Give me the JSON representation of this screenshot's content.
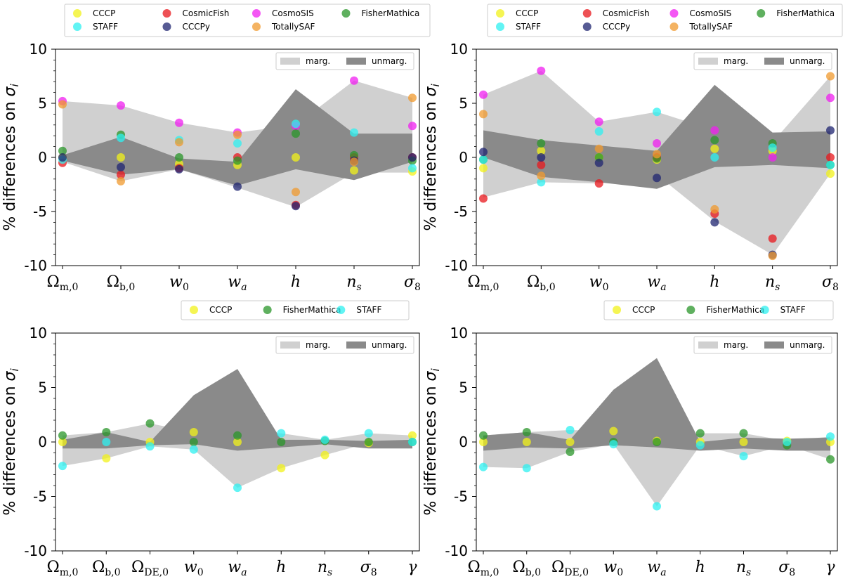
{
  "colors": {
    "CCCP": "#f2f21a",
    "CosmicFish": "#e8171c",
    "CosmoSIS": "#f01ff0",
    "FisherMathica": "#2a962a",
    "STAFF": "#2ef0f0",
    "CCCPy": "#1f2470",
    "TotallySAF": "#f09a2e",
    "marg": "#d0d0d0",
    "unmarg": "#8a8a8a"
  },
  "chart_data": [
    {
      "type": "scatter",
      "ylabel_prefix": "% differences on ",
      "ylabel_symbol": "σ",
      "ylabel_sub": "i",
      "ylim": [
        -10,
        10
      ],
      "yticks": [
        "10",
        "5",
        "0",
        "-5",
        "-10"
      ],
      "ytick_values": [
        10,
        5,
        0,
        -5,
        -10
      ],
      "legend_entries": [
        "CCCP",
        "CosmicFish",
        "CosmoSIS",
        "FisherMathica",
        "STAFF",
        "CCCPy",
        "TotallySAF"
      ],
      "band_legend": {
        "marg": "marg.",
        "unmarg": "unmarg."
      },
      "categories": [
        {
          "main": "Ω",
          "sub": "m,0",
          "italic": false
        },
        {
          "main": "Ω",
          "sub": "b,0",
          "italic": false
        },
        {
          "main": "w",
          "sub": "0",
          "italic": true
        },
        {
          "main": "w",
          "sub": "a",
          "italic": true
        },
        {
          "main": "h",
          "sub": "",
          "italic": true
        },
        {
          "main": "n",
          "sub": "s",
          "italic": true
        },
        {
          "main": "σ",
          "sub": "8",
          "italic": true
        }
      ],
      "marg_band": {
        "upper": [
          5.2,
          4.8,
          3.2,
          2.3,
          3.0,
          7.1,
          5.5
        ],
        "lower": [
          -0.4,
          -2.2,
          -1.1,
          -2.8,
          -4.6,
          -1.4,
          -1.4
        ]
      },
      "unmarg_band": {
        "upper": [
          0.2,
          1.9,
          -0.1,
          -0.4,
          6.3,
          2.2,
          2.2
        ],
        "lower": [
          -0.3,
          -1.6,
          -1.1,
          -2.6,
          -1.1,
          -2.1,
          -0.4
        ]
      },
      "series": [
        {
          "name": "CCCP",
          "values": [
            0.0,
            0.0,
            -0.6,
            -0.7,
            0.0,
            -1.2,
            -1.3
          ]
        },
        {
          "name": "CosmicFish",
          "values": [
            -0.5,
            -1.6,
            -1.0,
            0.0,
            -4.4,
            0.0,
            0.0
          ]
        },
        {
          "name": "CosmoSIS",
          "values": [
            5.2,
            4.8,
            3.2,
            2.3,
            2.9,
            7.1,
            2.9
          ]
        },
        {
          "name": "FisherMathica",
          "values": [
            0.6,
            2.1,
            0.0,
            -0.3,
            2.2,
            0.2,
            -0.3
          ]
        },
        {
          "name": "STAFF",
          "values": [
            -0.2,
            1.8,
            1.6,
            1.3,
            3.1,
            2.3,
            -1.0
          ]
        },
        {
          "name": "CCCPy",
          "values": [
            0.0,
            -0.9,
            -1.1,
            -2.7,
            -4.5,
            -0.3,
            0.0
          ]
        },
        {
          "name": "TotallySAF",
          "values": [
            4.9,
            -2.2,
            1.4,
            2.1,
            -3.2,
            -0.4,
            5.5
          ]
        }
      ]
    },
    {
      "type": "scatter",
      "ylabel_prefix": "% differences on ",
      "ylabel_symbol": "σ",
      "ylabel_sub": "i",
      "ylim": [
        -10,
        10
      ],
      "yticks": [
        "10",
        "5",
        "0",
        "-5",
        "-10"
      ],
      "ytick_values": [
        10,
        5,
        0,
        -5,
        -10
      ],
      "legend_entries": [
        "CCCP",
        "CosmicFish",
        "CosmoSIS",
        "FisherMathica",
        "STAFF",
        "CCCPy",
        "TotallySAF"
      ],
      "band_legend": {
        "marg": "marg.",
        "unmarg": "unmarg."
      },
      "categories": [
        {
          "main": "Ω",
          "sub": "m,0",
          "italic": false
        },
        {
          "main": "Ω",
          "sub": "b,0",
          "italic": false
        },
        {
          "main": "w",
          "sub": "0",
          "italic": true
        },
        {
          "main": "w",
          "sub": "a",
          "italic": true
        },
        {
          "main": "h",
          "sub": "",
          "italic": true
        },
        {
          "main": "n",
          "sub": "s",
          "italic": true
        },
        {
          "main": "σ",
          "sub": "8",
          "italic": true
        }
      ],
      "marg_band": {
        "upper": [
          5.8,
          8.0,
          3.3,
          4.2,
          2.5,
          1.4,
          7.5
        ],
        "lower": [
          -3.7,
          -2.3,
          -2.4,
          -1.6,
          -5.9,
          -9.0,
          -1.5
        ]
      },
      "unmarg_band": {
        "upper": [
          2.5,
          1.6,
          1.1,
          0.6,
          6.7,
          2.3,
          2.4
        ],
        "lower": [
          0.0,
          -1.8,
          -2.3,
          -2.9,
          -0.9,
          -0.7,
          -1.0
        ]
      },
      "series": [
        {
          "name": "CCCP",
          "values": [
            -1.0,
            0.6,
            0.0,
            -0.2,
            0.8,
            0.6,
            -1.5
          ]
        },
        {
          "name": "CosmicFish",
          "values": [
            -3.8,
            -0.7,
            -2.4,
            0.0,
            -5.2,
            -7.5,
            0.0
          ]
        },
        {
          "name": "CosmoSIS",
          "values": [
            5.8,
            8.0,
            3.3,
            1.3,
            2.5,
            0.0,
            5.5
          ]
        },
        {
          "name": "FisherMathica",
          "values": [
            -0.2,
            1.3,
            0.0,
            -0.1,
            1.6,
            1.3,
            -0.7
          ]
        },
        {
          "name": "STAFF",
          "values": [
            -0.2,
            -2.3,
            2.4,
            4.2,
            0.0,
            0.9,
            -0.7
          ]
        },
        {
          "name": "CCCPy",
          "values": [
            0.5,
            0.0,
            -0.5,
            -1.9,
            -6.0,
            -9.0,
            2.5
          ]
        },
        {
          "name": "TotallySAF",
          "values": [
            4.0,
            -1.7,
            0.8,
            0.3,
            -4.8,
            -9.1,
            7.5
          ]
        }
      ]
    },
    {
      "type": "scatter",
      "ylabel_prefix": "% differences on ",
      "ylabel_symbol": "σ",
      "ylabel_sub": "i",
      "ylim": [
        -10,
        10
      ],
      "yticks": [
        "10",
        "5",
        "0",
        "-5",
        "-10"
      ],
      "ytick_values": [
        10,
        5,
        0,
        -5,
        -10
      ],
      "legend_entries": [
        "CCCP",
        "FisherMathica",
        "STAFF"
      ],
      "band_legend": {
        "marg": "marg.",
        "unmarg": "unmarg."
      },
      "categories": [
        {
          "main": "Ω",
          "sub": "m,0",
          "italic": false
        },
        {
          "main": "Ω",
          "sub": "b,0",
          "italic": false
        },
        {
          "main": "Ω",
          "sub": "DE,0",
          "italic": false
        },
        {
          "main": "w",
          "sub": "0",
          "italic": true
        },
        {
          "main": "w",
          "sub": "a",
          "italic": true
        },
        {
          "main": "h",
          "sub": "",
          "italic": true
        },
        {
          "main": "n",
          "sub": "s",
          "italic": true
        },
        {
          "main": "σ",
          "sub": "8",
          "italic": true
        },
        {
          "main": "γ",
          "sub": "",
          "italic": true
        }
      ],
      "marg_band": {
        "upper": [
          0.6,
          0.9,
          1.7,
          0.9,
          0.6,
          0.8,
          0.2,
          0.8,
          0.6
        ],
        "lower": [
          -2.2,
          -1.5,
          -0.4,
          -0.7,
          -4.2,
          -2.4,
          -1.2,
          -0.1,
          -0.1
        ]
      },
      "unmarg_band": {
        "upper": [
          0.2,
          0.9,
          0.0,
          4.3,
          6.7,
          0.2,
          0.2,
          0.1,
          0.2
        ],
        "lower": [
          -0.6,
          -0.6,
          -0.3,
          -0.2,
          -0.8,
          -0.5,
          -0.2,
          -0.6,
          -0.6
        ]
      },
      "series": [
        {
          "name": "CCCP",
          "values": [
            0.0,
            -1.5,
            0.0,
            0.9,
            0.0,
            -2.4,
            -1.2,
            -0.1,
            0.6
          ]
        },
        {
          "name": "FisherMathica",
          "values": [
            0.6,
            0.9,
            1.7,
            0.0,
            0.6,
            0.0,
            0.1,
            0.0,
            0.0
          ]
        },
        {
          "name": "STAFF",
          "values": [
            -2.2,
            0.0,
            -0.4,
            -0.7,
            -4.2,
            0.8,
            0.2,
            0.8,
            0.0
          ]
        }
      ]
    },
    {
      "type": "scatter",
      "ylabel_prefix": "% differences on ",
      "ylabel_symbol": "σ",
      "ylabel_sub": "i",
      "ylim": [
        -10,
        10
      ],
      "yticks": [
        "10",
        "5",
        "0",
        "-5",
        "-10"
      ],
      "ytick_values": [
        10,
        5,
        0,
        -5,
        -10
      ],
      "legend_entries": [
        "CCCP",
        "FisherMathica",
        "STAFF"
      ],
      "band_legend": {
        "marg": "marg.",
        "unmarg": "unmarg."
      },
      "categories": [
        {
          "main": "Ω",
          "sub": "m,0",
          "italic": false
        },
        {
          "main": "Ω",
          "sub": "b,0",
          "italic": false
        },
        {
          "main": "Ω",
          "sub": "DE,0",
          "italic": false
        },
        {
          "main": "w",
          "sub": "0",
          "italic": true
        },
        {
          "main": "w",
          "sub": "a",
          "italic": true
        },
        {
          "main": "h",
          "sub": "",
          "italic": true
        },
        {
          "main": "n",
          "sub": "s",
          "italic": true
        },
        {
          "main": "σ",
          "sub": "8",
          "italic": true
        },
        {
          "main": "γ",
          "sub": "",
          "italic": true
        }
      ],
      "marg_band": {
        "upper": [
          0.6,
          0.9,
          1.1,
          1.0,
          0.1,
          0.8,
          0.8,
          0.1,
          0.5
        ],
        "lower": [
          -2.3,
          -2.4,
          -0.9,
          -0.2,
          -5.9,
          -0.3,
          -1.3,
          -0.3,
          -1.6
        ]
      },
      "unmarg_band": {
        "upper": [
          0.6,
          0.9,
          0.2,
          4.8,
          7.7,
          0.0,
          0.4,
          0.3,
          0.4
        ],
        "lower": [
          -0.8,
          -0.5,
          -0.6,
          -0.3,
          -0.5,
          -0.8,
          -0.6,
          -0.8,
          -0.8
        ]
      },
      "series": [
        {
          "name": "CCCP",
          "values": [
            0.0,
            0.0,
            0.0,
            1.0,
            0.1,
            0.0,
            0.0,
            0.1,
            0.0
          ]
        },
        {
          "name": "FisherMathica",
          "values": [
            0.6,
            0.9,
            -0.9,
            0.0,
            0.0,
            0.8,
            0.8,
            -0.3,
            -1.6
          ]
        },
        {
          "name": "STAFF",
          "values": [
            -2.3,
            -2.4,
            1.1,
            -0.2,
            -5.9,
            -0.3,
            -1.3,
            0.0,
            0.5
          ]
        }
      ]
    }
  ]
}
